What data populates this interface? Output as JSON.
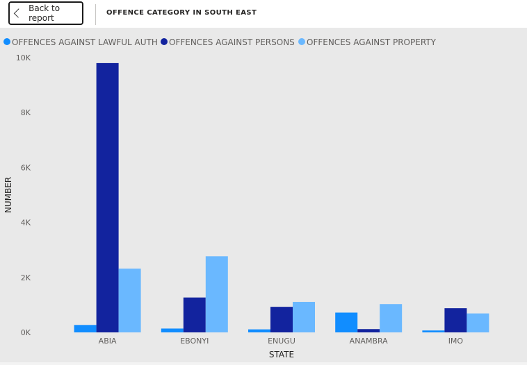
{
  "header": {
    "back_label": "Back to report",
    "title": "OFFENCE CATEGORY IN SOUTH EAST"
  },
  "colors": {
    "background": "#e9e9e9",
    "series": [
      "#118dff",
      "#12239e",
      "#6ab8ff"
    ]
  },
  "chart_data": {
    "type": "bar",
    "title": "OFFENCE CATEGORY IN SOUTH EAST",
    "xlabel": "STATE",
    "ylabel": "NUMBER",
    "categories": [
      "ABIA",
      "EBONYI",
      "ENUGU",
      "ANAMBRA",
      "IMO"
    ],
    "series": [
      {
        "name": "OFFENCES AGAINST LAWFUL AUTH",
        "values": [
          270,
          140,
          110,
          720,
          70
        ]
      },
      {
        "name": "OFFENCES AGAINST PERSONS",
        "values": [
          9800,
          1270,
          930,
          120,
          880
        ]
      },
      {
        "name": "OFFENCES AGAINST PROPERTY",
        "values": [
          2320,
          2770,
          1110,
          1030,
          690
        ]
      }
    ],
    "ylim": [
      0,
      10000
    ],
    "yticks": [
      0,
      2000,
      4000,
      6000,
      8000,
      10000
    ],
    "ytick_labels": [
      "0K",
      "2K",
      "4K",
      "6K",
      "8K",
      "10K"
    ],
    "legend_position": "top-left",
    "grid": false
  }
}
